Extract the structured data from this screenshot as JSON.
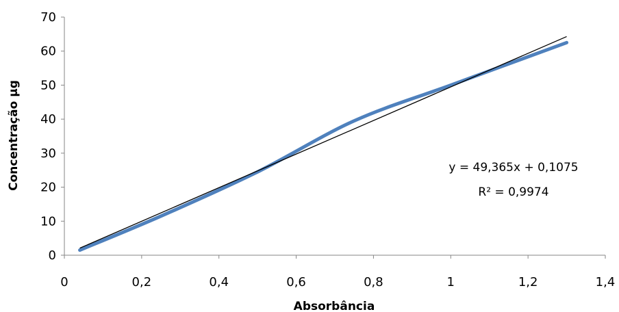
{
  "chart_data": {
    "type": "scatter",
    "title": "",
    "xlabel": "Absorbância",
    "ylabel": "Concentração µg",
    "xlim": [
      0,
      1.4
    ],
    "ylim": [
      0,
      70
    ],
    "xticks": [
      0,
      0.2,
      0.4,
      0.6,
      0.8,
      1,
      1.2,
      1.4
    ],
    "xtick_labels": [
      "0",
      "0,2",
      "0,4",
      "0,6",
      "0,8",
      "1",
      "1,2",
      "1,4"
    ],
    "yticks": [
      0,
      10,
      20,
      30,
      40,
      50,
      60,
      70
    ],
    "ytick_labels": [
      "0",
      "10",
      "20",
      "30",
      "40",
      "50",
      "60",
      "70"
    ],
    "grid": false,
    "series": [
      {
        "style": "smooth-line",
        "color": "#4f81bd",
        "points": [
          {
            "x": 0.04,
            "y": 1.5
          },
          {
            "x": 0.25,
            "y": 11.5
          },
          {
            "x": 0.5,
            "y": 24.5
          },
          {
            "x": 0.75,
            "y": 39.5
          },
          {
            "x": 1.0,
            "y": 50.0
          },
          {
            "x": 1.3,
            "y": 62.5
          }
        ]
      }
    ],
    "trendline": {
      "type": "linear",
      "color": "#000000",
      "slope": 49.365,
      "intercept": 0.1075,
      "x_range": [
        0.04,
        1.3
      ],
      "equation_text": "y = 49,365x + 0,1075",
      "r2_text": "R² = 0,9974"
    }
  }
}
